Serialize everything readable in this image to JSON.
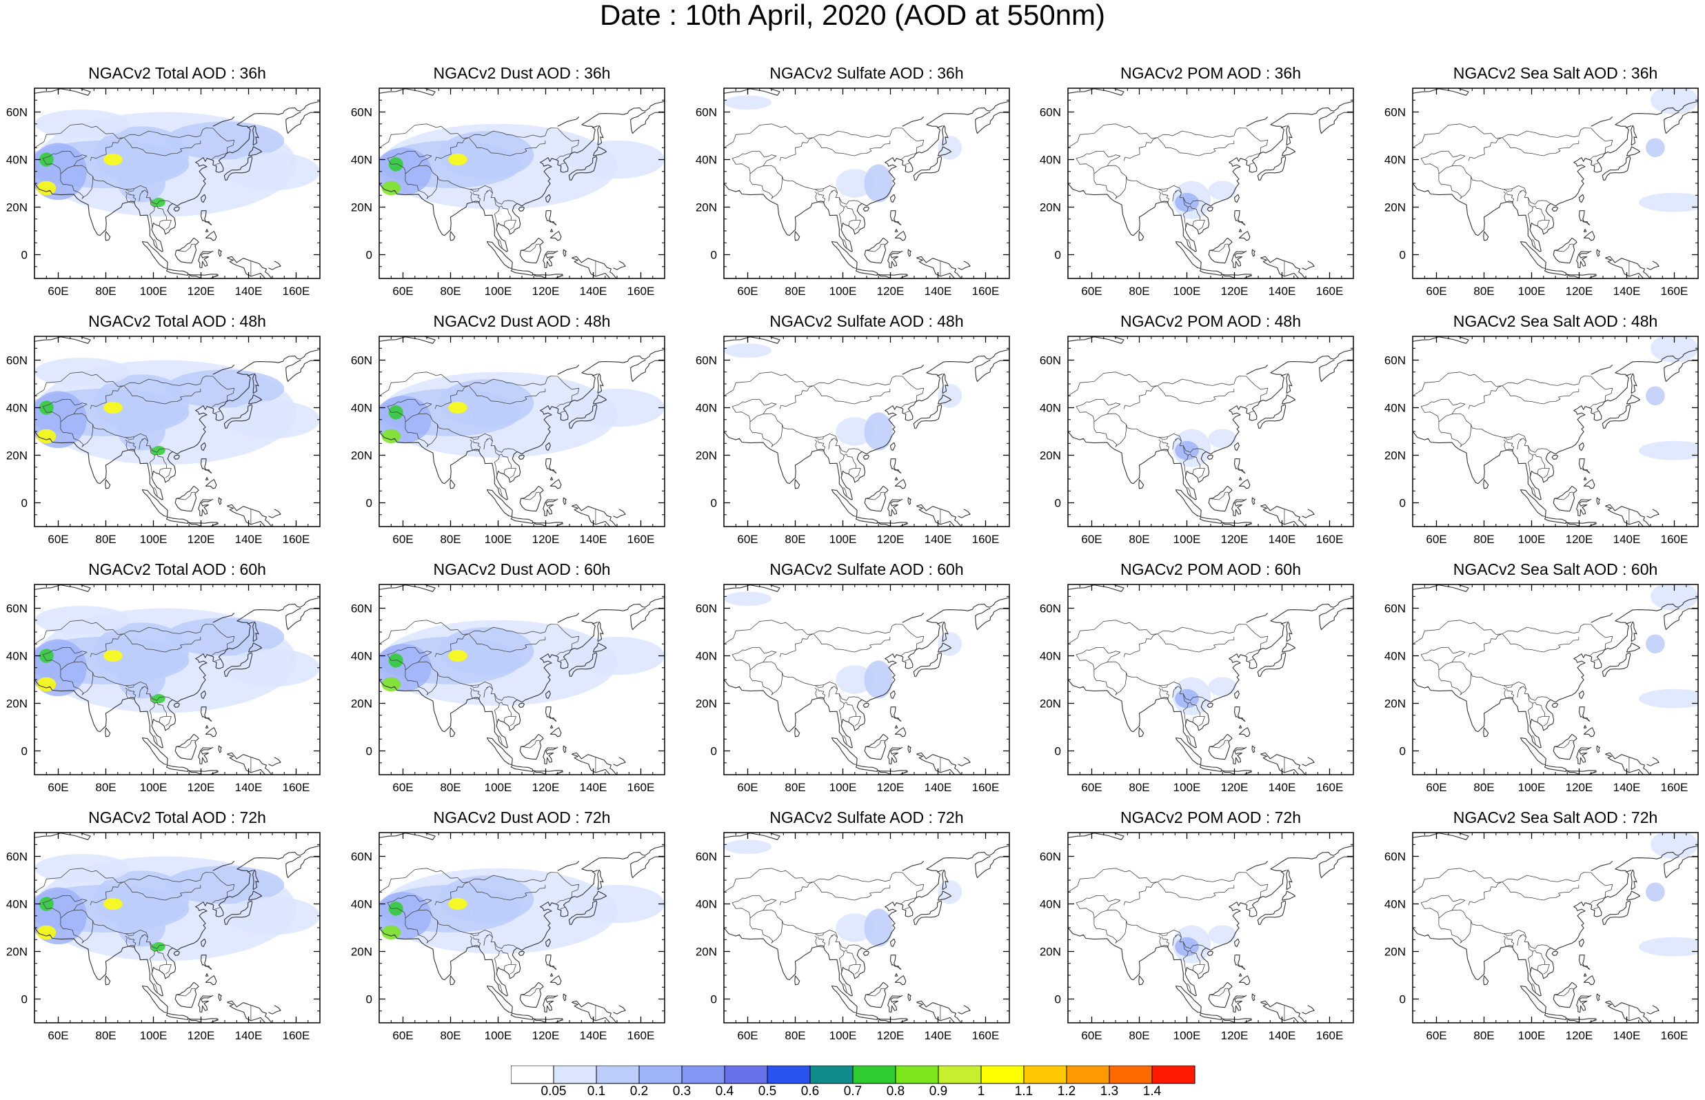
{
  "figure": {
    "title": "Date : 10th April, 2020 (AOD at 550nm)"
  },
  "map_extent": {
    "lon": [
      50,
      170
    ],
    "lat": [
      -10,
      70
    ]
  },
  "x_ticks": [
    {
      "lon": 60,
      "label": "60E"
    },
    {
      "lon": 80,
      "label": "80E"
    },
    {
      "lon": 100,
      "label": "100E"
    },
    {
      "lon": 120,
      "label": "120E"
    },
    {
      "lon": 140,
      "label": "140E"
    },
    {
      "lon": 160,
      "label": "160E"
    }
  ],
  "y_ticks": [
    {
      "lat": 60,
      "label": "60N"
    },
    {
      "lat": 40,
      "label": "40N"
    },
    {
      "lat": 20,
      "label": "20N"
    },
    {
      "lat": 0,
      "label": "0"
    }
  ],
  "panels": [
    [
      {
        "title": "NGACv2 Total AOD : 36h",
        "species": "total",
        "hour": 36
      },
      {
        "title": "NGACv2 Dust AOD : 36h",
        "species": "dust",
        "hour": 36
      },
      {
        "title": "NGACv2 Sulfate AOD : 36h",
        "species": "sulfate",
        "hour": 36
      },
      {
        "title": "NGACv2 POM AOD : 36h",
        "species": "pom",
        "hour": 36
      },
      {
        "title": "NGACv2 Sea Salt AOD : 36h",
        "species": "seasalt",
        "hour": 36
      }
    ],
    [
      {
        "title": "NGACv2 Total AOD : 48h",
        "species": "total",
        "hour": 48
      },
      {
        "title": "NGACv2 Dust AOD : 48h",
        "species": "dust",
        "hour": 48
      },
      {
        "title": "NGACv2 Sulfate AOD : 48h",
        "species": "sulfate",
        "hour": 48
      },
      {
        "title": "NGACv2 POM AOD : 48h",
        "species": "pom",
        "hour": 48
      },
      {
        "title": "NGACv2 Sea Salt AOD : 48h",
        "species": "seasalt",
        "hour": 48
      }
    ],
    [
      {
        "title": "NGACv2 Total AOD : 60h",
        "species": "total",
        "hour": 60
      },
      {
        "title": "NGACv2 Dust AOD : 60h",
        "species": "dust",
        "hour": 60
      },
      {
        "title": "NGACv2 Sulfate AOD : 60h",
        "species": "sulfate",
        "hour": 60
      },
      {
        "title": "NGACv2 POM AOD : 60h",
        "species": "pom",
        "hour": 60
      },
      {
        "title": "NGACv2 Sea Salt AOD : 60h",
        "species": "seasalt",
        "hour": 60
      }
    ],
    [
      {
        "title": "NGACv2 Total AOD : 72h",
        "species": "total",
        "hour": 72
      },
      {
        "title": "NGACv2 Dust AOD : 72h",
        "species": "dust",
        "hour": 72
      },
      {
        "title": "NGACv2 Sulfate AOD : 72h",
        "species": "sulfate",
        "hour": 72
      },
      {
        "title": "NGACv2 POM AOD : 72h",
        "species": "pom",
        "hour": 72
      },
      {
        "title": "NGACv2 Sea Salt  AOD : 72h",
        "species": "seasalt",
        "hour": 72
      }
    ]
  ],
  "colorbar": {
    "labels": [
      "0.05",
      "0.1",
      "0.2",
      "0.3",
      "0.4",
      "0.5",
      "0.6",
      "0.7",
      "0.8",
      "0.9",
      "1",
      "1.1",
      "1.2",
      "1.3",
      "1.4"
    ],
    "colors": [
      "#ffffff",
      "#dbe5ff",
      "#bccdfc",
      "#9fb3fa",
      "#8296f4",
      "#6872ea",
      "#2a52ee",
      "#118c8c",
      "#2ecc2e",
      "#7be61b",
      "#c6f02e",
      "#ffff00",
      "#ffc800",
      "#ff9b00",
      "#ff6a00",
      "#ff1a00"
    ]
  }
}
